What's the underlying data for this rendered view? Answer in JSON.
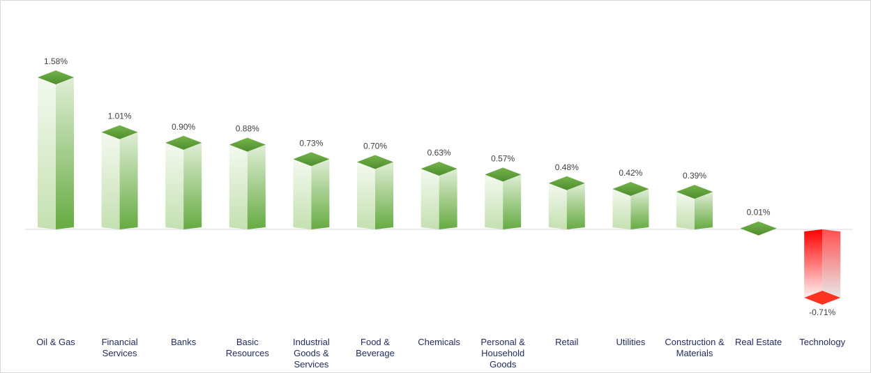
{
  "chart_data": {
    "type": "bar",
    "title": "",
    "xlabel": "",
    "ylabel": "",
    "categories": [
      [
        "Oil & Gas"
      ],
      [
        "Financial",
        "Services"
      ],
      [
        "Banks"
      ],
      [
        "Basic",
        "Resources"
      ],
      [
        "Industrial",
        "Goods &",
        "Services"
      ],
      [
        "Food &",
        "Beverage"
      ],
      [
        "Chemicals"
      ],
      [
        "Personal &",
        "Household",
        "Goods"
      ],
      [
        "Retail"
      ],
      [
        "Utilities"
      ],
      [
        "Construction &",
        "Materials"
      ],
      [
        "Real Estate"
      ],
      [
        "Technology"
      ]
    ],
    "values": [
      1.58,
      1.01,
      0.9,
      0.88,
      0.73,
      0.7,
      0.63,
      0.57,
      0.48,
      0.42,
      0.39,
      0.01,
      -0.71
    ],
    "value_labels": [
      "1.58%",
      "1.01%",
      "0.90%",
      "0.88%",
      "0.73%",
      "0.70%",
      "0.63%",
      "0.57%",
      "0.48%",
      "0.42%",
      "0.39%",
      "0.01%",
      "-0.71%"
    ],
    "ylim": [
      -0.9,
      1.8
    ],
    "grid": false,
    "legend": "none",
    "colors": {
      "positive": "#6aaa40",
      "negative": "#ff0000",
      "axis": "#d9d9d9"
    }
  }
}
